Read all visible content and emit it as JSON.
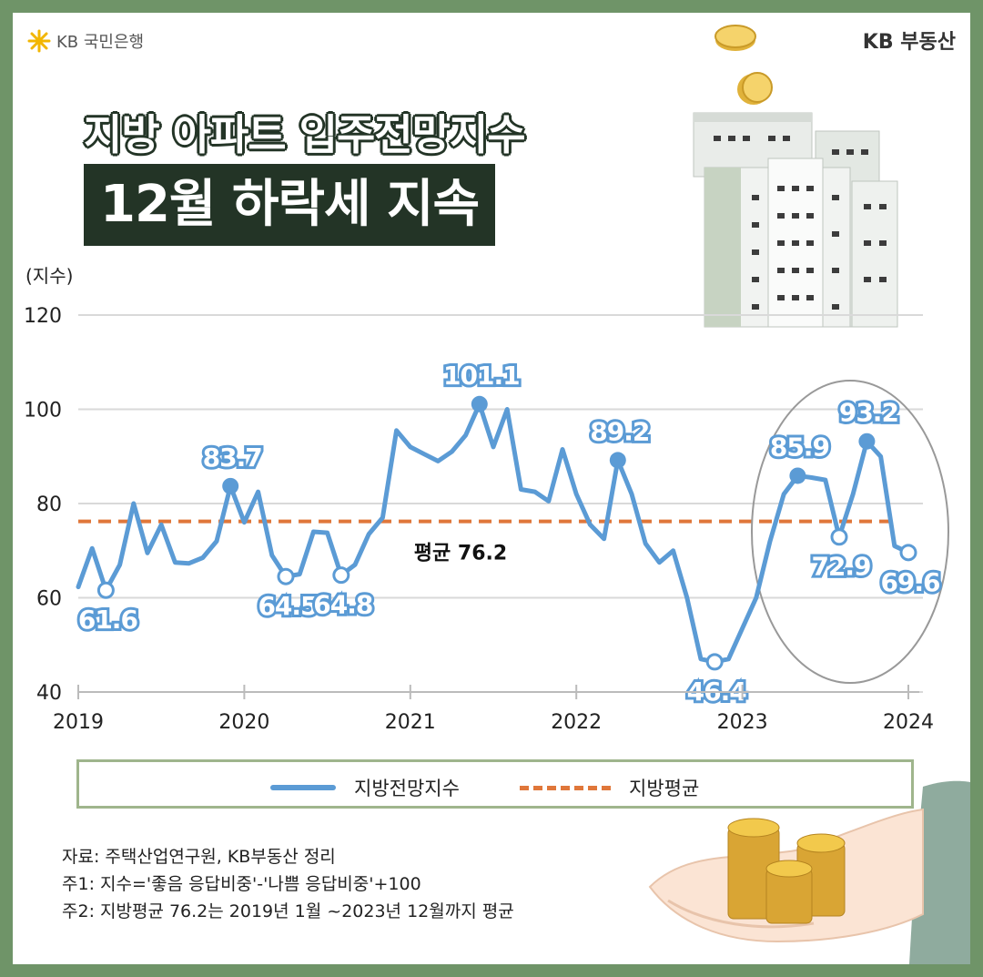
{
  "brand": {
    "left_logo": "KB 국민은행",
    "right_logo": "KB 부동산",
    "left_symbol": "star-logo-icon",
    "accent": "#f2b600"
  },
  "header": {
    "title_line1": "지방 아파트 입주전망지수",
    "title_line2": "12월 하락세 지속"
  },
  "chart_data": {
    "type": "line",
    "ylabel": "(지수)",
    "ylim": [
      40,
      120
    ],
    "yticks": [
      40,
      60,
      80,
      100,
      120
    ],
    "x_ticks": [
      "2019",
      "2020",
      "2021",
      "2022",
      "2023",
      "2024"
    ],
    "grid": true,
    "series": [
      {
        "name": "지방전망지수",
        "color": "#5b9bd5",
        "values": [
          62.3,
          70.5,
          61.6,
          67.0,
          80.0,
          69.5,
          75.5,
          67.5,
          67.3,
          68.5,
          72.0,
          83.7,
          76.0,
          82.5,
          69.0,
          64.5,
          65.0,
          74.0,
          73.8,
          64.8,
          67.0,
          73.5,
          77.0,
          95.5,
          92.0,
          90.5,
          89.0,
          91.0,
          94.5,
          101.1,
          92.0,
          100.0,
          83.0,
          82.5,
          80.5,
          91.5,
          82.0,
          75.5,
          72.5,
          89.2,
          82.0,
          71.5,
          67.5,
          70.0,
          60.0,
          47.0,
          46.4,
          47.0,
          53.5,
          60.0,
          72.0,
          82.0,
          85.9,
          85.5,
          85.0,
          72.9,
          82.0,
          93.2,
          90.0,
          71.0,
          69.6
        ]
      },
      {
        "name": "지방평균",
        "color": "#e0773a",
        "value": 76.2
      }
    ],
    "point_labels": [
      {
        "index": 2,
        "label": "61.6",
        "marker": "open",
        "pos": "below"
      },
      {
        "index": 11,
        "label": "83.7",
        "marker": "filled",
        "pos": "above"
      },
      {
        "index": 15,
        "label": "64.5",
        "marker": "open",
        "pos": "below"
      },
      {
        "index": 19,
        "label": "64.8",
        "marker": "open",
        "pos": "below"
      },
      {
        "index": 29,
        "label": "101.1",
        "marker": "filled",
        "pos": "above"
      },
      {
        "index": 39,
        "label": "89.2",
        "marker": "filled",
        "pos": "above"
      },
      {
        "index": 46,
        "label": "46.4",
        "marker": "open",
        "pos": "below"
      },
      {
        "index": 52,
        "label": "85.9",
        "marker": "filled",
        "pos": "above"
      },
      {
        "index": 55,
        "label": "72.9",
        "marker": "open",
        "pos": "below"
      },
      {
        "index": 57,
        "label": "93.2",
        "marker": "filled",
        "pos": "above"
      },
      {
        "index": 60,
        "label": "69.6",
        "marker": "open",
        "pos": "below"
      }
    ],
    "average_label": "평균 76.2",
    "highlight": "2023"
  },
  "legend": {
    "line_label": "지방전망지수",
    "avg_label": "지방평균"
  },
  "notes": {
    "source": "자료: 주택산업연구원, KB부동산 정리",
    "note1": "주1: 지수='좋음 응답비중'-'나쁨 응답비중'+100",
    "note2": "주2: 지방평균 76.2는 2019년 1월 ~2023년 12월까지 평균"
  }
}
